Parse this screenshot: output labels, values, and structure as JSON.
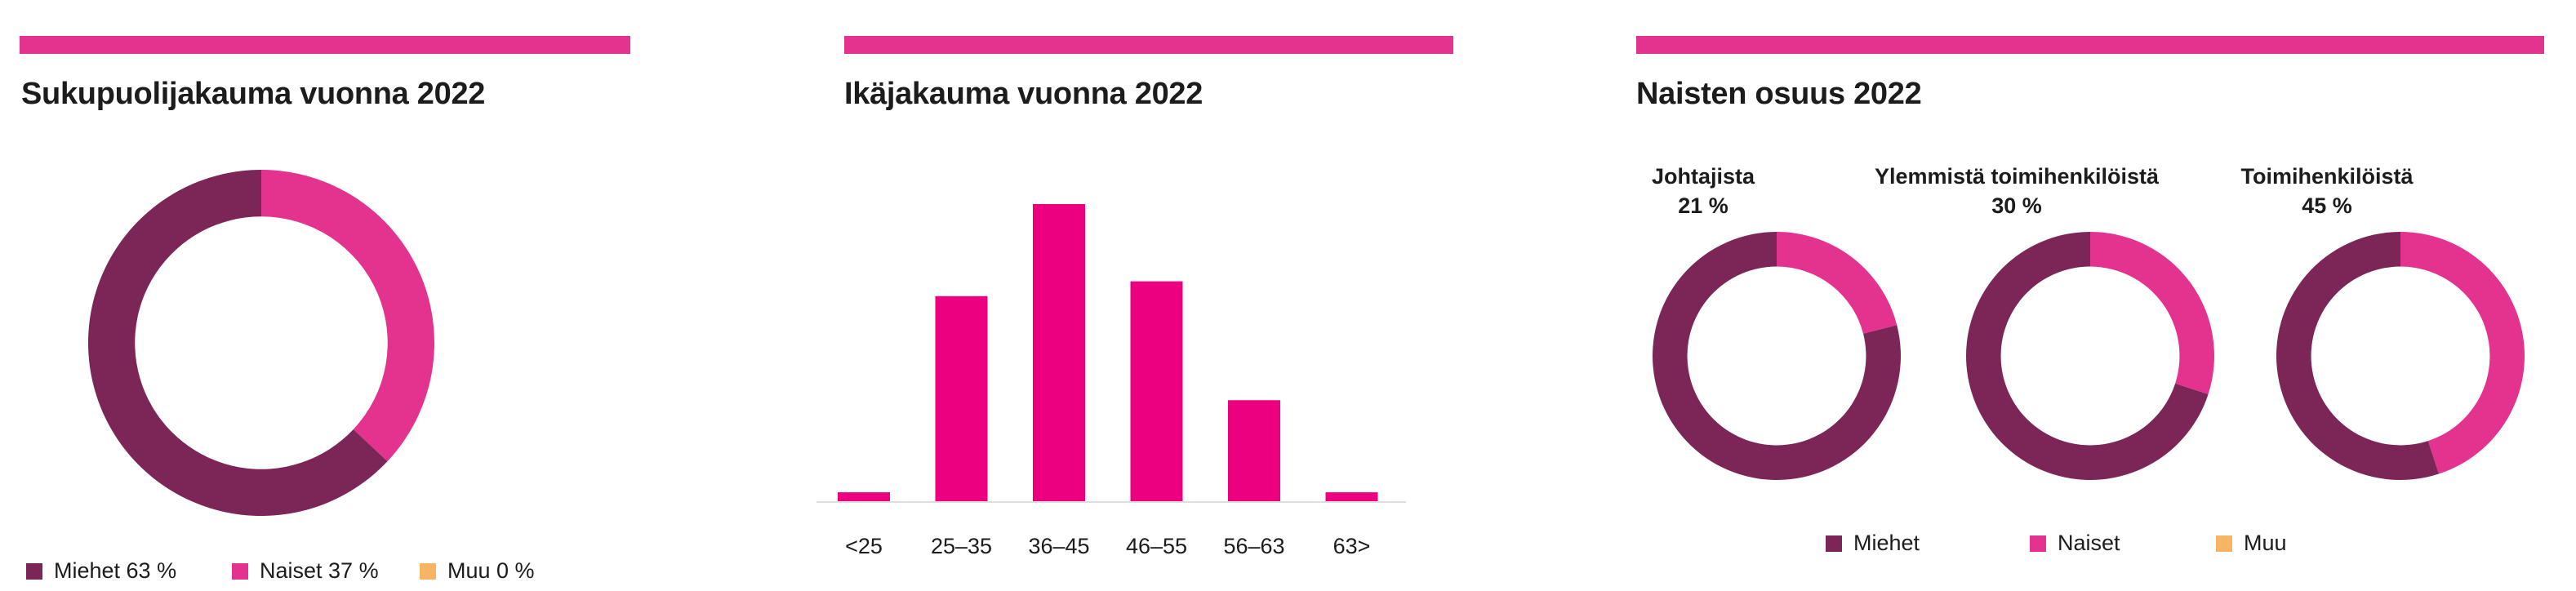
{
  "colors": {
    "accent": "#e4338f",
    "miehet": "#7b2657",
    "naiset": "#e4338f",
    "muu": "#f7b563",
    "bar": "#ec0080",
    "axis": "#dddddd"
  },
  "panels": {
    "gender": {
      "title": "Sukupuolijakauma vuonna 2022",
      "legend": [
        {
          "label": "Miehet 63 %",
          "color": "#7b2657"
        },
        {
          "label": "Naiset 37 %",
          "color": "#e4338f"
        },
        {
          "label": "Muu 0 %",
          "color": "#f7b563"
        }
      ]
    },
    "age": {
      "title": "Ikäjakauma vuonna 2022"
    },
    "women": {
      "title": "Naisten osuus 2022",
      "donuts": [
        {
          "title": "Johtajista",
          "value_label": "21 %"
        },
        {
          "title": "Ylemmistä toimihenkilöistä",
          "value_label": "30 %"
        },
        {
          "title": "Toimihenkilöistä",
          "value_label": "45 %"
        }
      ],
      "legend": [
        {
          "label": "Miehet",
          "color": "#7b2657"
        },
        {
          "label": "Naiset",
          "color": "#e4338f"
        },
        {
          "label": "Muu",
          "color": "#f7b563"
        }
      ]
    }
  },
  "chart_data": [
    {
      "type": "pie",
      "title": "Sukupuolijakauma vuonna 2022",
      "categories": [
        "Miehet",
        "Naiset",
        "Muu"
      ],
      "values": [
        63,
        37,
        0
      ],
      "unit": "%",
      "donut": true
    },
    {
      "type": "bar",
      "title": "Ikäjakauma vuonna 2022",
      "categories": [
        "<25",
        "25–35",
        "36–45",
        "46–55",
        "56–63",
        "63>"
      ],
      "values": [
        3,
        69,
        100,
        74,
        34,
        3
      ],
      "ylim": [
        0,
        100
      ],
      "grid": false
    },
    {
      "type": "pie",
      "title": "Johtajista",
      "categories": [
        "Naiset",
        "Miehet"
      ],
      "values": [
        21,
        79
      ],
      "unit": "%",
      "donut": true
    },
    {
      "type": "pie",
      "title": "Ylemmistä toimihenkilöistä",
      "categories": [
        "Naiset",
        "Miehet"
      ],
      "values": [
        30,
        70
      ],
      "unit": "%",
      "donut": true
    },
    {
      "type": "pie",
      "title": "Toimihenkilöistä",
      "categories": [
        "Naiset",
        "Miehet"
      ],
      "values": [
        45,
        55
      ],
      "unit": "%",
      "donut": true
    }
  ]
}
